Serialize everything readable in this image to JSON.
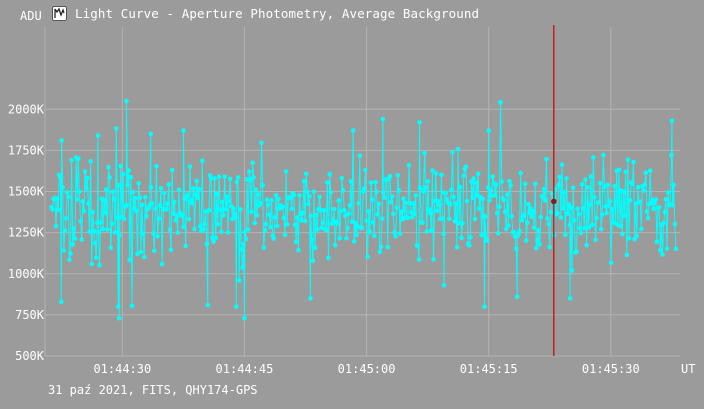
{
  "window": {
    "title": "Light Curve - Aperture Photometry, Average Background",
    "footer": "31 paź 2021, FITS, QHY174-GPS",
    "icon": "graph-app-icon"
  },
  "colors": {
    "background": "#9b9b9b",
    "grid": "#b3b3b3",
    "series": "#00ffff",
    "cursor": "#cc0000",
    "marker": "#8b1a1a",
    "text": "#ffffff"
  },
  "chart_data": {
    "type": "line",
    "title": "Light Curve - Aperture Photometry, Average Background",
    "ylabel": "ADU",
    "xlabel": "UT",
    "ylim": [
      500000,
      2500000
    ],
    "xlim": [
      "01:44:20.5",
      "01:45:38.5"
    ],
    "y_ticks": [
      "500K",
      "750K",
      "1000K",
      "1250K",
      "1500K",
      "1750K",
      "2000K"
    ],
    "y_tick_values": [
      500000,
      750000,
      1000000,
      1250000,
      1500000,
      1750000,
      2000000
    ],
    "x_ticks": [
      "01:44:30",
      "01:44:45",
      "01:45:00",
      "01:45:15",
      "01:45:30"
    ],
    "x_tick_values": [
      "01:44:30",
      "01:44:45",
      "01:45:00",
      "01:45:15",
      "01:45:30"
    ],
    "grid": true,
    "cursor_x": "01:45:23",
    "cursor_y": 1440000,
    "series": [
      {
        "style": "line-with-markers",
        "point_count": 560,
        "typical_range": [
          1150000,
          1650000
        ],
        "mean": 1400000,
        "notable_points": [
          {
            "x": "01:44:30.5",
            "y": 2050000
          },
          {
            "x": "01:44:22.5",
            "y": 830000
          },
          {
            "x": "01:44:29.6",
            "y": 730000
          },
          {
            "x": "01:44:45.0",
            "y": 730000
          },
          {
            "x": "01:44:29.5",
            "y": 800000
          },
          {
            "x": "01:44:44.0",
            "y": 800000
          },
          {
            "x": "01:44:40.5",
            "y": 810000
          },
          {
            "x": "01:44:53.1",
            "y": 850000
          },
          {
            "x": "01:45:14.5",
            "y": 800000
          },
          {
            "x": "01:45:09.5",
            "y": 930000
          },
          {
            "x": "01:45:18.5",
            "y": 860000
          },
          {
            "x": "01:45:25.0",
            "y": 850000
          },
          {
            "x": "01:45:02.0",
            "y": 1940000
          },
          {
            "x": "01:45:06.5",
            "y": 1920000
          },
          {
            "x": "01:45:37.5",
            "y": 1930000
          },
          {
            "x": "01:44:37.5",
            "y": 1870000
          },
          {
            "x": "01:45:15.0",
            "y": 1870000
          },
          {
            "x": "01:44:27.0",
            "y": 1840000
          },
          {
            "x": "01:44:33.5",
            "y": 1850000
          }
        ]
      }
    ]
  }
}
